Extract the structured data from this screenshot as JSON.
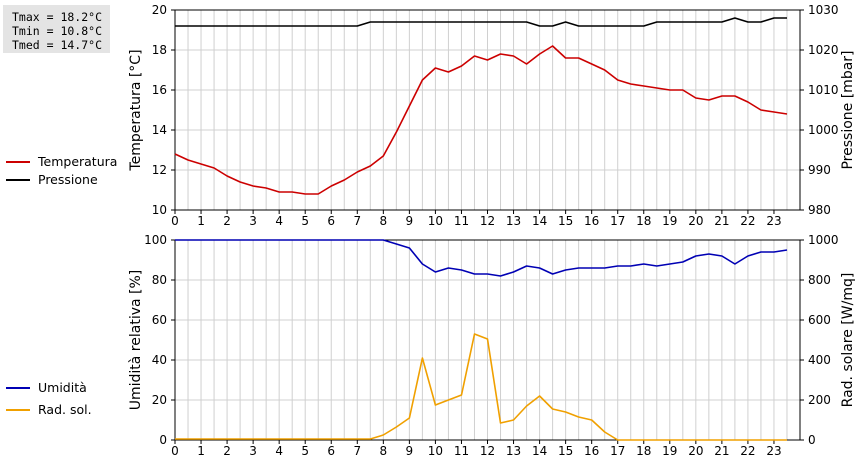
{
  "stats": {
    "tmax": "Tmax = 18.2°C",
    "tmin": "Tmin = 10.8°C",
    "tmed": "Tmed = 14.7°C"
  },
  "chart_data": [
    {
      "type": "line",
      "title": "",
      "xlabel": "",
      "ylabel_left": "Temperatura [°C]",
      "ylabel_right": "Pressione [mbar]",
      "xlim": [
        0,
        24
      ],
      "ylim_left": [
        10,
        20
      ],
      "ylim_right": [
        980,
        1030
      ],
      "xticks": [
        "0",
        "1",
        "2",
        "3",
        "4",
        "5",
        "6",
        "7",
        "8",
        "9",
        "10",
        "11",
        "12",
        "13",
        "14",
        "15",
        "16",
        "17",
        "18",
        "19",
        "20",
        "21",
        "22",
        "23"
      ],
      "yticks_left": [
        "10",
        "12",
        "14",
        "16",
        "18",
        "20"
      ],
      "yticks_right": [
        "980",
        "990",
        "1000",
        "1010",
        "1020",
        "1030"
      ],
      "grid": true,
      "legend_position": "left",
      "colors": {
        "temperatura": "#cc0000",
        "pressione": "#000000"
      },
      "series": [
        {
          "name": "Temperatura",
          "axis": "left",
          "x": [
            0,
            0.5,
            1,
            1.5,
            2,
            2.5,
            3,
            3.5,
            4,
            4.5,
            5,
            5.5,
            6,
            6.5,
            7,
            7.5,
            8,
            8.5,
            9,
            9.5,
            10,
            10.5,
            11,
            11.5,
            12,
            12.5,
            13,
            13.5,
            14,
            14.5,
            15,
            15.5,
            16,
            16.5,
            17,
            17.5,
            18,
            18.5,
            19,
            19.5,
            20,
            20.5,
            21,
            21.5,
            22,
            22.5,
            23,
            23.5
          ],
          "values": [
            12.8,
            12.5,
            12.3,
            12.1,
            11.7,
            11.4,
            11.2,
            11.1,
            10.9,
            10.9,
            10.8,
            10.8,
            11.2,
            11.5,
            11.9,
            12.2,
            12.7,
            13.9,
            15.2,
            16.5,
            17.1,
            16.9,
            17.2,
            17.7,
            17.5,
            17.8,
            17.7,
            17.3,
            17.8,
            18.2,
            17.6,
            17.6,
            17.3,
            17.0,
            16.5,
            16.3,
            16.2,
            16.1,
            16.0,
            16.0,
            15.6,
            15.5,
            15.7,
            15.7,
            15.4,
            15.0,
            14.9,
            14.8
          ]
        },
        {
          "name": "Pressione",
          "axis": "right",
          "x": [
            0,
            0.5,
            1,
            1.5,
            2,
            2.5,
            3,
            3.5,
            4,
            4.5,
            5,
            5.5,
            6,
            6.5,
            7,
            7.5,
            8,
            8.5,
            9,
            9.5,
            10,
            10.5,
            11,
            11.5,
            12,
            12.5,
            13,
            13.5,
            14,
            14.5,
            15,
            15.5,
            16,
            16.5,
            17,
            17.5,
            18,
            18.5,
            19,
            19.5,
            20,
            20.5,
            21,
            21.5,
            22,
            22.5,
            23,
            23.5
          ],
          "values": [
            1026,
            1026,
            1026,
            1026,
            1026,
            1026,
            1026,
            1026,
            1026,
            1026,
            1026,
            1026,
            1026,
            1026,
            1026,
            1027,
            1027,
            1027,
            1027,
            1027,
            1027,
            1027,
            1027,
            1027,
            1027,
            1027,
            1027,
            1027,
            1026,
            1026,
            1027,
            1026,
            1026,
            1026,
            1026,
            1026,
            1026,
            1027,
            1027,
            1027,
            1027,
            1027,
            1027,
            1028,
            1027,
            1027,
            1028,
            1028
          ]
        }
      ]
    },
    {
      "type": "line",
      "title": "",
      "xlabel": "",
      "ylabel_left": "Umidità relativa [%]",
      "ylabel_right": "Rad. solare [W/mq]",
      "xlim": [
        0,
        24
      ],
      "ylim_left": [
        0,
        100
      ],
      "ylim_right": [
        0,
        1000
      ],
      "xticks": [
        "0",
        "1",
        "2",
        "3",
        "4",
        "5",
        "6",
        "7",
        "8",
        "9",
        "10",
        "11",
        "12",
        "13",
        "14",
        "15",
        "16",
        "17",
        "18",
        "19",
        "20",
        "21",
        "22",
        "23"
      ],
      "yticks_left": [
        "0",
        "20",
        "40",
        "60",
        "80",
        "100"
      ],
      "yticks_right": [
        "0",
        "200",
        "400",
        "600",
        "800",
        "1000"
      ],
      "grid": true,
      "legend_position": "left",
      "colors": {
        "umidita": "#0000b4",
        "radsol": "#f0a000"
      },
      "series": [
        {
          "name": "Umidità",
          "axis": "left",
          "x": [
            0,
            0.5,
            1,
            1.5,
            2,
            2.5,
            3,
            3.5,
            4,
            4.5,
            5,
            5.5,
            6,
            6.5,
            7,
            7.5,
            8,
            8.5,
            9,
            9.5,
            10,
            10.5,
            11,
            11.5,
            12,
            12.5,
            13,
            13.5,
            14,
            14.5,
            15,
            15.5,
            16,
            16.5,
            17,
            17.5,
            18,
            18.5,
            19,
            19.5,
            20,
            20.5,
            21,
            21.5,
            22,
            22.5,
            23,
            23.5
          ],
          "values": [
            100,
            100,
            100,
            100,
            100,
            100,
            100,
            100,
            100,
            100,
            100,
            100,
            100,
            100,
            100,
            100,
            100,
            98,
            96,
            88,
            84,
            86,
            85,
            83,
            83,
            82,
            84,
            87,
            86,
            83,
            85,
            86,
            86,
            86,
            87,
            87,
            88,
            87,
            88,
            89,
            92,
            93,
            92,
            88,
            92,
            94,
            94,
            95
          ]
        },
        {
          "name": "Rad. sol.",
          "axis": "right",
          "x": [
            0,
            0.5,
            1,
            1.5,
            2,
            2.5,
            3,
            3.5,
            4,
            4.5,
            5,
            5.5,
            6,
            6.5,
            7,
            7.5,
            8,
            8.5,
            9,
            9.5,
            10,
            10.5,
            11,
            11.5,
            12,
            12.5,
            13,
            13.5,
            14,
            14.5,
            15,
            15.5,
            16,
            16.5,
            17,
            17.5,
            18,
            18.5,
            19,
            19.5,
            20,
            20.5,
            21,
            21.5,
            22,
            22.5,
            23,
            23.5
          ],
          "values": [
            5,
            5,
            5,
            5,
            5,
            5,
            5,
            5,
            5,
            5,
            5,
            5,
            5,
            5,
            5,
            5,
            25,
            65,
            110,
            410,
            175,
            200,
            225,
            530,
            505,
            85,
            100,
            170,
            220,
            155,
            140,
            115,
            100,
            40,
            0,
            0,
            0,
            0,
            0,
            0,
            0,
            0,
            0,
            0,
            0,
            0,
            0,
            0
          ]
        }
      ]
    }
  ]
}
